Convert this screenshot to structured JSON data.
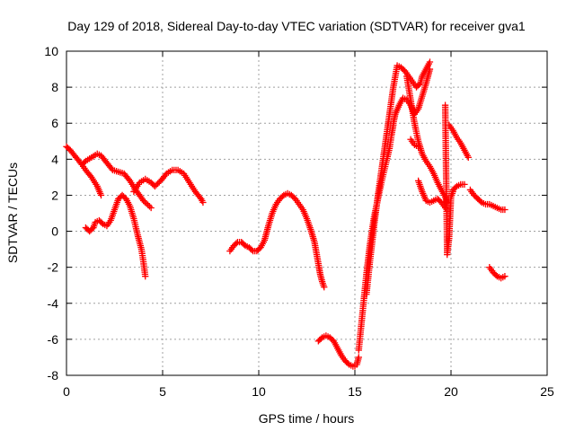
{
  "chart_data": {
    "type": "scatter",
    "title": "Day 129 of 2018, Sidereal Day-to-day VTEC variation (SDTVAR) for receiver gva1",
    "xlabel": "GPS time / hours",
    "ylabel": "SDTVAR / TECUs",
    "xlim": [
      0,
      25
    ],
    "ylim": [
      -8,
      10
    ],
    "xticks": [
      0,
      5,
      10,
      15,
      20,
      25
    ],
    "yticks": [
      -8,
      -6,
      -4,
      -2,
      0,
      2,
      4,
      6,
      8,
      10
    ],
    "grid": true,
    "marker": "plus",
    "color": "#ff0000",
    "series": [
      {
        "x": [
          0.0,
          0.2,
          0.5,
          0.8,
          1.0,
          1.3,
          1.6,
          1.8
        ],
        "y": [
          4.7,
          4.5,
          4.1,
          3.7,
          3.4,
          3.0,
          2.5,
          2.0
        ]
      },
      {
        "x": [
          0.8,
          1.0,
          1.3,
          1.6,
          1.8,
          2.1,
          2.4,
          2.7,
          3.0,
          3.3,
          3.6,
          4.0,
          4.4
        ],
        "y": [
          3.7,
          3.9,
          4.1,
          4.3,
          4.2,
          3.8,
          3.4,
          3.3,
          3.2,
          2.8,
          2.3,
          1.7,
          1.3
        ]
      },
      {
        "x": [
          1.0,
          1.2,
          1.4,
          1.5,
          1.7,
          1.9,
          2.1,
          2.3,
          2.5,
          2.7,
          2.9,
          3.1,
          3.3,
          3.5,
          3.7,
          3.9,
          4.0,
          4.1
        ],
        "y": [
          0.2,
          0.0,
          0.2,
          0.5,
          0.6,
          0.4,
          0.3,
          0.6,
          1.2,
          1.8,
          2.0,
          1.8,
          1.4,
          0.7,
          -0.2,
          -1.0,
          -1.7,
          -2.5
        ]
      },
      {
        "x": [
          3.5,
          3.8,
          4.1,
          4.4,
          4.6,
          4.9,
          5.2,
          5.5,
          5.8,
          6.1,
          6.4,
          6.7,
          7.0,
          7.1
        ],
        "y": [
          2.2,
          2.7,
          2.9,
          2.7,
          2.5,
          2.8,
          3.2,
          3.4,
          3.4,
          3.2,
          2.7,
          2.2,
          1.8,
          1.6
        ]
      },
      {
        "x": [
          8.5,
          8.7,
          8.9,
          9.1,
          9.3,
          9.5,
          9.7,
          9.9,
          10.1,
          10.3,
          10.5,
          10.7,
          10.9,
          11.1,
          11.3,
          11.5,
          11.7,
          11.9,
          12.1,
          12.3,
          12.5,
          12.7,
          12.9,
          13.0,
          13.1,
          13.2,
          13.3,
          13.4
        ],
        "y": [
          -1.1,
          -0.8,
          -0.6,
          -0.6,
          -0.8,
          -0.9,
          -1.1,
          -1.1,
          -0.9,
          -0.5,
          0.3,
          1.0,
          1.5,
          1.8,
          2.0,
          2.1,
          2.0,
          1.8,
          1.5,
          1.2,
          0.7,
          0.1,
          -0.6,
          -1.2,
          -1.8,
          -2.4,
          -2.8,
          -3.1
        ]
      },
      {
        "x": [
          13.1,
          13.3,
          13.5,
          13.7,
          13.9,
          14.1,
          14.3,
          14.5,
          14.7,
          14.9,
          15.0,
          15.1,
          15.2
        ],
        "y": [
          -6.1,
          -5.9,
          -5.8,
          -5.9,
          -6.1,
          -6.5,
          -6.9,
          -7.2,
          -7.4,
          -7.5,
          -7.5,
          -7.4,
          -7.0
        ]
      },
      {
        "x": [
          15.2,
          15.4,
          15.6,
          15.8,
          16.0,
          16.2,
          16.4,
          16.6,
          16.8,
          16.9,
          17.0
        ],
        "y": [
          -6.6,
          -4.5,
          -2.4,
          -0.6,
          0.8,
          1.8,
          2.8,
          3.7,
          4.6,
          5.3,
          5.9
        ]
      },
      {
        "x": [
          15.6,
          15.8,
          16.0,
          16.2,
          16.4,
          16.6,
          16.8,
          17.0,
          17.2,
          17.4,
          17.6,
          17.8,
          18.0,
          18.2,
          18.4,
          18.5,
          18.7,
          18.9
        ],
        "y": [
          -3.5,
          -1.5,
          0.3,
          2.0,
          3.5,
          5.0,
          6.5,
          8.0,
          9.2,
          9.1,
          8.9,
          8.6,
          8.3,
          8.0,
          8.2,
          8.6,
          9.0,
          9.4
        ]
      },
      {
        "x": [
          17.0,
          17.1,
          17.3,
          17.5,
          17.7,
          17.9,
          18.1,
          18.3,
          18.5,
          18.7,
          18.9
        ],
        "y": [
          6.0,
          6.5,
          7.0,
          7.4,
          7.3,
          7.0,
          6.5,
          6.8,
          7.5,
          8.2,
          9.0
        ]
      },
      {
        "x": [
          17.7,
          17.9,
          18.1,
          18.3,
          18.5,
          18.7,
          18.9,
          19.1,
          19.3,
          19.5,
          19.7,
          19.8
        ],
        "y": [
          8.6,
          7.3,
          6.0,
          5.0,
          4.3,
          3.9,
          3.6,
          3.2,
          2.7,
          2.3,
          1.9,
          1.6
        ]
      },
      {
        "x": [
          17.9,
          18.1,
          18.3
        ],
        "y": [
          5.1,
          4.8,
          4.7
        ]
      },
      {
        "x": [
          18.3,
          18.5,
          18.7,
          18.9,
          19.1,
          19.3,
          19.5,
          19.7
        ],
        "y": [
          2.8,
          2.2,
          1.7,
          1.6,
          1.7,
          1.8,
          1.6,
          1.3
        ]
      },
      {
        "x": [
          19.7,
          19.8,
          19.9,
          20.0,
          20.1
        ],
        "y": [
          7.0,
          -1.3,
          -0.4,
          1.9,
          2.2
        ]
      },
      {
        "x": [
          19.9,
          20.1,
          20.3,
          20.5,
          20.7,
          20.9
        ],
        "y": [
          5.9,
          5.6,
          5.2,
          4.9,
          4.5,
          4.1
        ]
      },
      {
        "x": [
          20.1,
          20.3,
          20.5,
          20.7
        ],
        "y": [
          2.3,
          2.5,
          2.6,
          2.6
        ]
      },
      {
        "x": [
          21.0,
          21.2,
          21.4,
          21.6,
          21.8,
          22.0,
          22.2,
          22.4,
          22.6,
          22.8
        ],
        "y": [
          2.3,
          2.0,
          1.8,
          1.6,
          1.5,
          1.5,
          1.4,
          1.3,
          1.2,
          1.2
        ]
      },
      {
        "x": [
          22.0,
          22.2,
          22.4,
          22.6,
          22.8
        ],
        "y": [
          -2.0,
          -2.3,
          -2.5,
          -2.6,
          -2.5
        ]
      }
    ]
  }
}
